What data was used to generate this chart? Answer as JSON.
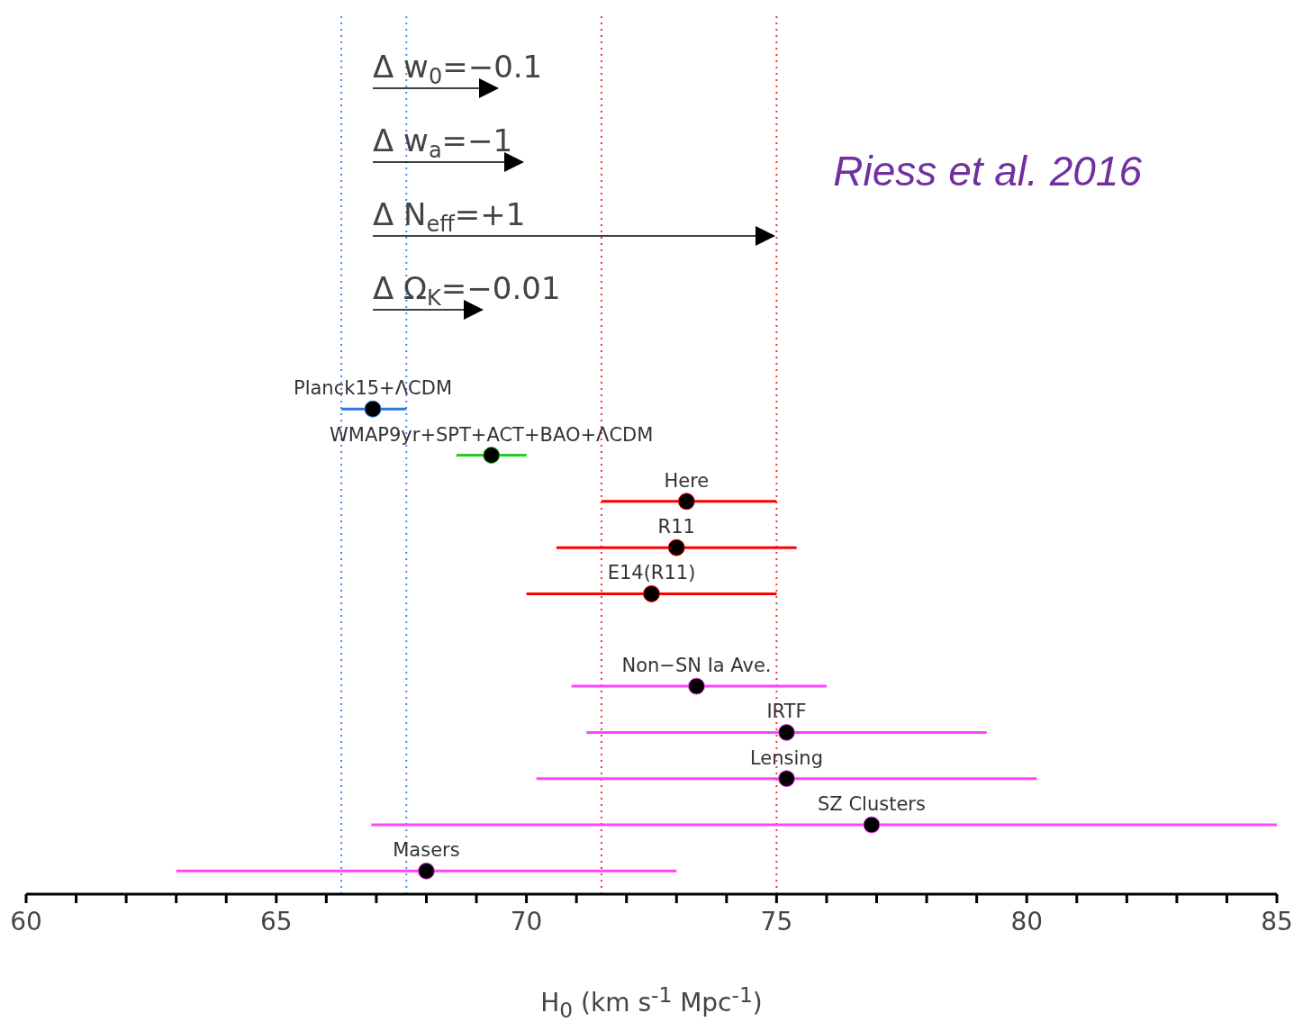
{
  "chart_data": {
    "type": "scatter",
    "orientation": "horizontal",
    "xlabel": "H$_{0}$ (km s$^{-1}$ Mpc$^{-1}$)",
    "annotations": [
      "Riess et al. 2016",
      "Δ w$_{0}$=−0.1",
      "Δ w$_{a}$=−1",
      "Δ N$_{eff}$=+1",
      "Δ Ω$_{K}$=−0.01"
    ],
    "categories": [
      null,
      null,
      null,
      null,
      null,
      null,
      null,
      null,
      null,
      null,
      null,
      null,
      null,
      null,
      null,
      null,
      null,
      null,
      null
    ],
    "xlim": [
      60,
      85
    ],
    "xticks": [
      60,
      {
        "value": 61,
        "label": null
      },
      {
        "value": 62,
        "label": null
      },
      {
        "value": 63,
        "label": null
      },
      {
        "value": 64,
        "label": null
      },
      65,
      {
        "value": 66,
        "label": null
      },
      {
        "value": 67,
        "label": null
      },
      {
        "value": 68,
        "label": null
      },
      {
        "value": 69,
        "label": null
      },
      70,
      {
        "value": 71,
        "label": null
      },
      {
        "value": 72,
        "label": null
      },
      {
        "value": 73,
        "label": null
      },
      {
        "value": 74,
        "label": null
      },
      75,
      {
        "value": 76,
        "label": null
      },
      {
        "value": 77,
        "label": null
      },
      {
        "value": 78,
        "label": null
      },
      {
        "value": 79,
        "label": null
      },
      80,
      {
        "value": 81,
        "label": null
      },
      {
        "value": 82,
        "label": null
      },
      {
        "value": 83,
        "label": null
      },
      {
        "value": 84,
        "label": null
      },
      85
    ],
    "tick_labels": "x",
    "marker": "circle",
    "ref_lines": [
      {
        "axis": "x",
        "value": 66.3,
        "color": "#3b8cff",
        "line_style": "dotted"
      },
      {
        "axis": "x",
        "value": 67.6,
        "color": "#3b8cff",
        "line_style": "dotted"
      },
      {
        "axis": "x",
        "value": 71.5,
        "color": "#ff3030",
        "line_style": "dotted"
      },
      {
        "axis": "x",
        "value": 75.0,
        "color": "#ff3030",
        "line_style": "dotted"
      }
    ],
    "series": [
      {
        "name": "Planck15+ΛCDM",
        "color": "#2a7ae2",
        "values": [
          null,
          null,
          null,
          null,
          null,
          null,
          null,
          null,
          66.93,
          null,
          null,
          null,
          null,
          null,
          null,
          null,
          null,
          null,
          null
        ],
        "errors": [
          null,
          null,
          null,
          null,
          null,
          null,
          null,
          null,
          [
            66.3,
            67.6
          ],
          null,
          null,
          null,
          null,
          null,
          null,
          null,
          null,
          null,
          null
        ]
      },
      {
        "name": "WMAP9yr+SPT+ACT+BAO+ΛCDM",
        "color": "#22cc22",
        "values": [
          null,
          null,
          null,
          null,
          null,
          null,
          null,
          null,
          null,
          69.3,
          null,
          null,
          null,
          null,
          null,
          null,
          null,
          null,
          null
        ],
        "errors": [
          null,
          null,
          null,
          null,
          null,
          null,
          null,
          null,
          null,
          [
            68.6,
            70.0
          ],
          null,
          null,
          null,
          null,
          null,
          null,
          null,
          null,
          null
        ]
      },
      {
        "name": "Here",
        "color": "#ff0000",
        "values": [
          null,
          null,
          null,
          null,
          null,
          null,
          null,
          null,
          null,
          null,
          73.2,
          null,
          null,
          null,
          null,
          null,
          null,
          null,
          null
        ],
        "errors": [
          null,
          null,
          null,
          null,
          null,
          null,
          null,
          null,
          null,
          null,
          [
            71.5,
            75.0
          ],
          null,
          null,
          null,
          null,
          null,
          null,
          null,
          null
        ]
      },
      {
        "name": "R11",
        "color": "#ff0000",
        "values": [
          null,
          null,
          null,
          null,
          null,
          null,
          null,
          null,
          null,
          null,
          null,
          73.0,
          null,
          null,
          null,
          null,
          null,
          null,
          null
        ],
        "errors": [
          null,
          null,
          null,
          null,
          null,
          null,
          null,
          null,
          null,
          null,
          null,
          [
            70.6,
            75.4
          ],
          null,
          null,
          null,
          null,
          null,
          null,
          null
        ]
      },
      {
        "name": "E14(R11)",
        "color": "#ff0000",
        "values": [
          null,
          null,
          null,
          null,
          null,
          null,
          null,
          null,
          null,
          null,
          null,
          null,
          72.5,
          null,
          null,
          null,
          null,
          null,
          null
        ],
        "errors": [
          null,
          null,
          null,
          null,
          null,
          null,
          null,
          null,
          null,
          null,
          null,
          null,
          [
            70.0,
            75.0
          ],
          null,
          null,
          null,
          null,
          null,
          null
        ]
      },
      {
        "name": "Non−SN Ia Ave.",
        "color": "#ff44ff",
        "values": [
          null,
          null,
          null,
          null,
          null,
          null,
          null,
          null,
          null,
          null,
          null,
          null,
          null,
          null,
          73.4,
          null,
          null,
          null,
          null
        ],
        "errors": [
          null,
          null,
          null,
          null,
          null,
          null,
          null,
          null,
          null,
          null,
          null,
          null,
          null,
          null,
          [
            70.9,
            76.0
          ],
          null,
          null,
          null,
          null
        ]
      },
      {
        "name": "IRTF",
        "color": "#ff44ff",
        "values": [
          null,
          null,
          null,
          null,
          null,
          null,
          null,
          null,
          null,
          null,
          null,
          null,
          null,
          null,
          null,
          75.2,
          null,
          null,
          null
        ],
        "errors": [
          null,
          null,
          null,
          null,
          null,
          null,
          null,
          null,
          null,
          null,
          null,
          null,
          null,
          null,
          null,
          [
            71.2,
            79.2
          ],
          null,
          null,
          null
        ]
      },
      {
        "name": "Lensing",
        "color": "#ff44ff",
        "values": [
          null,
          null,
          null,
          null,
          null,
          null,
          null,
          null,
          null,
          null,
          null,
          null,
          null,
          null,
          null,
          null,
          75.2,
          null,
          null
        ],
        "errors": [
          null,
          null,
          null,
          null,
          null,
          null,
          null,
          null,
          null,
          null,
          null,
          null,
          null,
          null,
          null,
          null,
          [
            70.2,
            80.2
          ],
          null,
          null
        ]
      },
      {
        "name": "SZ Clusters",
        "color": "#ff44ff",
        "values": [
          null,
          null,
          null,
          null,
          null,
          null,
          null,
          null,
          null,
          null,
          null,
          null,
          null,
          null,
          null,
          null,
          null,
          76.9,
          null
        ],
        "errors": [
          null,
          null,
          null,
          null,
          null,
          null,
          null,
          null,
          null,
          null,
          null,
          null,
          null,
          null,
          null,
          null,
          null,
          [
            66.9,
            85.0
          ],
          null
        ]
      },
      {
        "name": "Masers",
        "color": "#ff44ff",
        "values": [
          null,
          null,
          null,
          null,
          null,
          null,
          null,
          null,
          null,
          null,
          null,
          null,
          null,
          null,
          null,
          null,
          null,
          null,
          68.0
        ],
        "errors": [
          null,
          null,
          null,
          null,
          null,
          null,
          null,
          null,
          null,
          null,
          null,
          null,
          null,
          null,
          null,
          null,
          null,
          null,
          [
            63.0,
            73.0
          ]
        ]
      }
    ]
  }
}
